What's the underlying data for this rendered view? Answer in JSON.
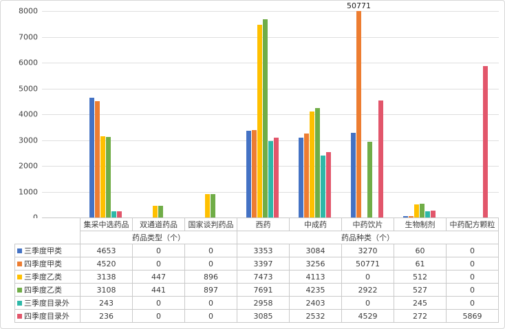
{
  "chart_data": {
    "type": "bar",
    "title": "",
    "categories": [
      "集采中选药品",
      "双通道药品",
      "国家谈判药品",
      "西药",
      "中成药",
      "中药饮片",
      "生物制剂",
      "中药配方颗粒"
    ],
    "category_groups": [
      {
        "label": "药品类型（个）",
        "span": 3
      },
      {
        "label": "药品种类（个）",
        "span": 5
      }
    ],
    "series": [
      {
        "name": "三季度甲类",
        "color": "#4472C4",
        "values": [
          4653,
          0,
          0,
          3353,
          3084,
          3270,
          60,
          0
        ]
      },
      {
        "name": "四季度甲类",
        "color": "#ED7D31",
        "values": [
          4520,
          0,
          0,
          3397,
          3256,
          50771,
          61,
          0
        ]
      },
      {
        "name": "三季度乙类",
        "color": "#FFC000",
        "values": [
          3138,
          447,
          896,
          7473,
          4113,
          0,
          512,
          0
        ]
      },
      {
        "name": "四季度乙类",
        "color": "#70AD47",
        "values": [
          3108,
          441,
          897,
          7691,
          4235,
          2922,
          527,
          0
        ]
      },
      {
        "name": "三季度目录外",
        "color": "#2EB8A8",
        "values": [
          243,
          0,
          0,
          2958,
          2403,
          0,
          245,
          0
        ]
      },
      {
        "name": "四季度目录外",
        "color": "#E2566B",
        "values": [
          236,
          0,
          0,
          3085,
          2532,
          4529,
          272,
          5869
        ]
      }
    ],
    "y_axis": {
      "min": 0,
      "max": 8000,
      "step": 1000,
      "tick_labels": [
        "0",
        "1000",
        "2000",
        "3000",
        "4000",
        "5000",
        "6000",
        "7000",
        "8000"
      ]
    },
    "ylim": [
      0,
      8000
    ],
    "grid": true,
    "legend_position": "table-left",
    "data_labels": [
      {
        "text": "50771",
        "series_index": 1,
        "category_index": 5
      }
    ]
  }
}
